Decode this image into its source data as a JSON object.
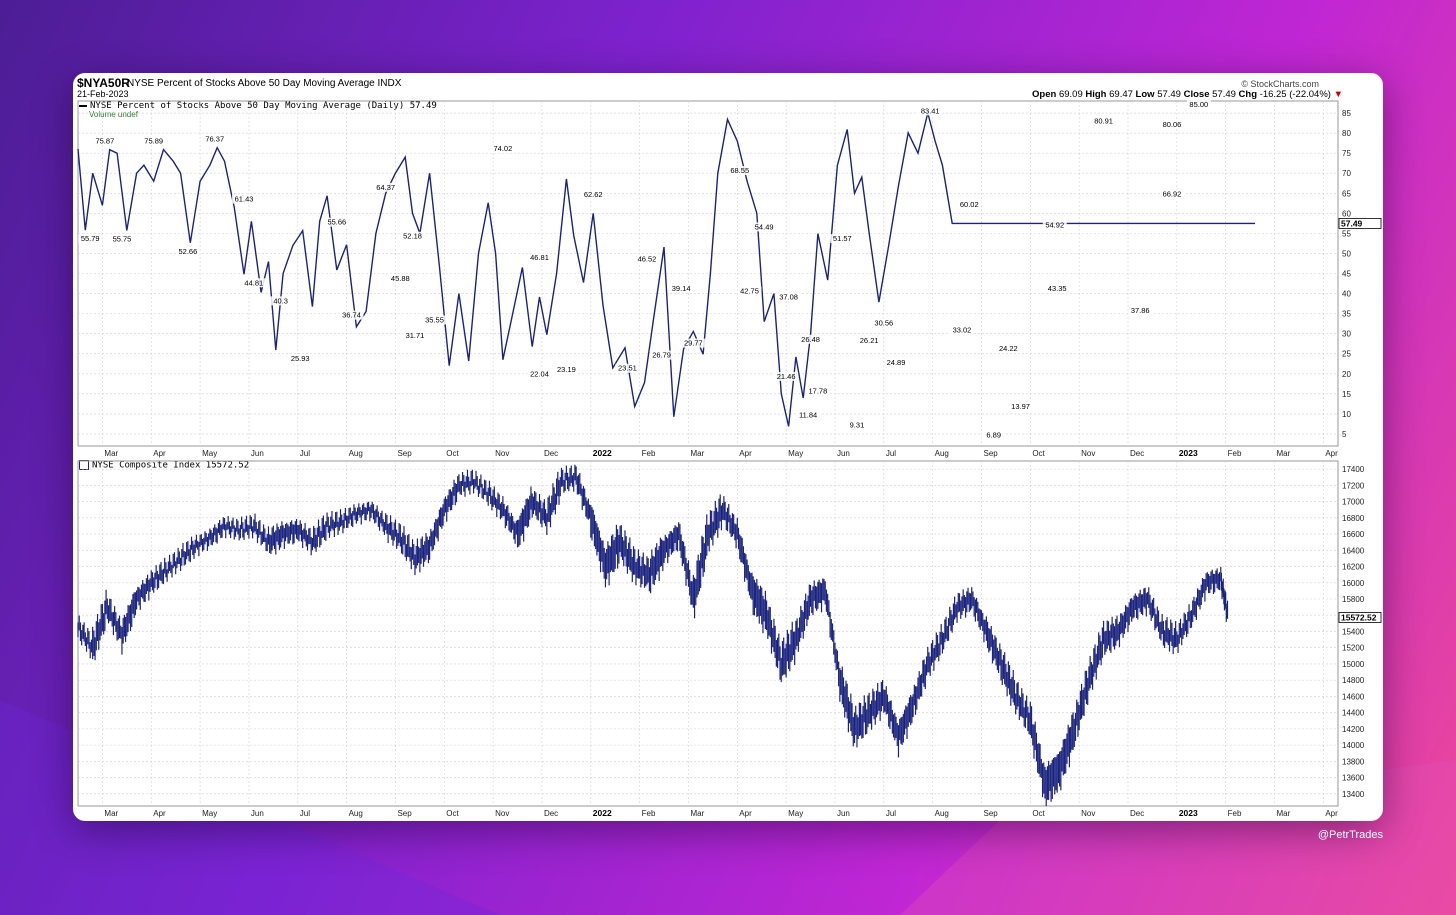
{
  "watermark": "@PetrTrades",
  "header": {
    "symbol": "$NYA50R",
    "name": "NYSE Percent of Stocks Above 50 Day Moving Average",
    "exchange": "INDX",
    "date": "21-Feb-2023",
    "brand": "© StockCharts.com",
    "open_label": "Open",
    "open": "69.09",
    "high_label": "High",
    "high": "69.47",
    "low_label": "Low",
    "low": "57.49",
    "close_label": "Close",
    "close": "57.49",
    "chg_label": "Chg",
    "chg": "-16.25 (-22.04%)",
    "chg_arrow": "▼"
  },
  "colors": {
    "line": "#1a237e",
    "grid": "#d0d0d0",
    "down": "#cc0000",
    "volume_label": "#2a7d2a"
  },
  "chart_data": [
    {
      "type": "line",
      "legend": "NYSE Percent of Stocks Above 50 Day Moving Average (Daily) 57.49",
      "sub_legend": "Volume undef",
      "last_value_label": "57.49",
      "ylim": [
        2,
        88
      ],
      "yticks": [
        5,
        10,
        15,
        20,
        25,
        30,
        35,
        40,
        45,
        50,
        55,
        60,
        65,
        70,
        75,
        80,
        85
      ],
      "x_tick_labels": [
        "Mar",
        "Apr",
        "May",
        "Jun",
        "Jul",
        "Aug",
        "Sep",
        "Oct",
        "Nov",
        "Dec",
        "2022",
        "Feb",
        "Mar",
        "Apr",
        "May",
        "Jun",
        "Jul",
        "Aug",
        "Sep",
        "Oct",
        "Nov",
        "Dec",
        "2023",
        "Feb",
        "Mar",
        "Apr"
      ],
      "x_tick_pos": [
        0.5,
        1.5,
        2.5,
        3.5,
        4.5,
        5.5,
        6.5,
        7.5,
        8.5,
        9.5,
        10.5,
        11.5,
        12.5,
        13.5,
        14.5,
        15.5,
        16.5,
        17.5,
        18.5,
        19.5,
        20.5,
        21.5,
        22.5,
        23.5,
        24.5,
        25.5
      ],
      "x": [
        0,
        0.15,
        0.3,
        0.5,
        0.65,
        0.8,
        1.0,
        1.2,
        1.35,
        1.55,
        1.75,
        1.95,
        2.1,
        2.3,
        2.5,
        2.7,
        2.85,
        3.0,
        3.2,
        3.4,
        3.55,
        3.75,
        3.9,
        4.05,
        4.2,
        4.4,
        4.6,
        4.8,
        4.95,
        5.1,
        5.3,
        5.5,
        5.7,
        5.9,
        6.1,
        6.3,
        6.5,
        6.7,
        6.85,
        7.0,
        7.2,
        7.4,
        7.6,
        7.8,
        8.0,
        8.2,
        8.4,
        8.55,
        8.7,
        8.9,
        9.1,
        9.3,
        9.45,
        9.6,
        9.8,
        10.0,
        10.15,
        10.35,
        10.55,
        10.75,
        10.95,
        11.2,
        11.4,
        11.6,
        11.8,
        12.0,
        12.2,
        12.4,
        12.6,
        12.8,
        12.95,
        13.1,
        13.3,
        13.5,
        13.7,
        13.9,
        14.05,
        14.25,
        14.4,
        14.55,
        14.7,
        14.85,
        15.0,
        15.15,
        15.35,
        15.55,
        15.75,
        15.9,
        16.05,
        16.2,
        16.4,
        16.6,
        16.8,
        17.0,
        17.2,
        17.4,
        17.55,
        17.7,
        17.9,
        18.1,
        18.25,
        18.45,
        18.6,
        18.8,
        18.95,
        19.1,
        19.25,
        19.4,
        19.6,
        19.8,
        20.0,
        20.2,
        20.4,
        20.6,
        20.8,
        21.0,
        21.15,
        21.35,
        21.55,
        21.75,
        21.9,
        22.1,
        22.25,
        22.45,
        22.65,
        22.85,
        23.05,
        23.25,
        23.45,
        23.65,
        23.85,
        24.0,
        24.1
      ],
      "y": [
        76,
        55.79,
        70,
        62,
        75.87,
        75,
        55.75,
        70,
        72,
        68,
        75.89,
        73,
        70,
        52.66,
        68,
        72,
        76.37,
        73,
        61.43,
        44.81,
        58,
        40.3,
        48,
        25.93,
        45,
        52,
        55.66,
        36.74,
        58,
        64.37,
        45.88,
        52.18,
        31.71,
        35.55,
        55,
        65,
        70,
        74.02,
        60,
        55,
        70,
        46.81,
        22.04,
        40,
        23.19,
        50,
        62.62,
        50,
        23.51,
        35,
        46.52,
        26.79,
        39.14,
        29.77,
        45,
        68.55,
        54.49,
        42.75,
        60,
        37.08,
        21.46,
        26.48,
        11.84,
        17.78,
        35,
        51.57,
        9.31,
        26.21,
        30.56,
        24.89,
        45,
        70,
        83.41,
        78,
        68,
        60.02,
        33.02,
        40,
        15,
        6.89,
        24.22,
        13.97,
        30,
        54.92,
        43.35,
        72,
        80.91,
        65,
        69,
        55,
        37.86,
        52,
        66.92,
        80.06,
        75,
        85,
        78,
        72,
        57.49,
        57.49,
        57.49,
        57.49,
        57.49,
        57.49,
        57.49,
        57.49,
        57.49,
        57.49,
        57.49,
        57.49,
        57.49,
        57.49,
        57.49,
        57.49,
        57.49,
        57.49,
        57.49,
        57.49,
        57.49,
        57.49,
        57.49,
        57.49,
        57.49,
        57.49,
        57.49,
        57.49,
        57.49,
        57.49,
        57.49,
        57.49,
        57.49,
        57.49,
        57.49
      ],
      "peak_labels": [
        {
          "x": 0.25,
          "y": 55.79,
          "t": "55.79",
          "pos": "below"
        },
        {
          "x": 0.55,
          "y": 75.87,
          "t": "75.87",
          "pos": "above"
        },
        {
          "x": 0.9,
          "y": 55.75,
          "t": "55.75",
          "pos": "below"
        },
        {
          "x": 1.55,
          "y": 75.89,
          "t": "75.89",
          "pos": "above"
        },
        {
          "x": 2.25,
          "y": 52.66,
          "t": "52.66",
          "pos": "below"
        },
        {
          "x": 2.8,
          "y": 76.37,
          "t": "76.37",
          "pos": "above"
        },
        {
          "x": 3.4,
          "y": 61.43,
          "t": "61.43",
          "pos": "above"
        },
        {
          "x": 3.6,
          "y": 44.81,
          "t": "44.81",
          "pos": "below"
        },
        {
          "x": 4.15,
          "y": 40.3,
          "t": "40.3",
          "pos": "below"
        },
        {
          "x": 4.55,
          "y": 25.93,
          "t": "25.93",
          "pos": "below"
        },
        {
          "x": 5.3,
          "y": 55.66,
          "t": "55.66",
          "pos": "above"
        },
        {
          "x": 5.6,
          "y": 36.74,
          "t": "36.74",
          "pos": "below"
        },
        {
          "x": 6.3,
          "y": 64.37,
          "t": "64.37",
          "pos": "above"
        },
        {
          "x": 6.6,
          "y": 45.88,
          "t": "45.88",
          "pos": "below"
        },
        {
          "x": 6.85,
          "y": 52.18,
          "t": "52.18",
          "pos": "above"
        },
        {
          "x": 6.9,
          "y": 31.71,
          "t": "31.71",
          "pos": "below"
        },
        {
          "x": 7.3,
          "y": 35.55,
          "t": "35.55",
          "pos": "below"
        },
        {
          "x": 8.7,
          "y": 74.02,
          "t": "74.02",
          "pos": "above"
        },
        {
          "x": 9.45,
          "y": 46.81,
          "t": "46.81",
          "pos": "above"
        },
        {
          "x": 9.45,
          "y": 22.04,
          "t": "22.04",
          "pos": "below"
        },
        {
          "x": 10.0,
          "y": 23.19,
          "t": "23.19",
          "pos": "below"
        },
        {
          "x": 10.55,
          "y": 62.62,
          "t": "62.62",
          "pos": "above"
        },
        {
          "x": 11.25,
          "y": 23.51,
          "t": "23.51",
          "pos": "below"
        },
        {
          "x": 11.65,
          "y": 46.52,
          "t": "46.52",
          "pos": "above"
        },
        {
          "x": 11.95,
          "y": 26.79,
          "t": "26.79",
          "pos": "below"
        },
        {
          "x": 12.35,
          "y": 39.14,
          "t": "39.14",
          "pos": "above"
        },
        {
          "x": 12.6,
          "y": 29.77,
          "t": "29.77",
          "pos": "below"
        },
        {
          "x": 13.55,
          "y": 68.55,
          "t": "68.55",
          "pos": "above"
        },
        {
          "x": 14.05,
          "y": 54.49,
          "t": "54.49",
          "pos": "above"
        },
        {
          "x": 13.75,
          "y": 42.75,
          "t": "42.75",
          "pos": "below"
        },
        {
          "x": 14.55,
          "y": 37.08,
          "t": "37.08",
          "pos": "above"
        },
        {
          "x": 14.5,
          "y": 21.46,
          "t": "21.46",
          "pos": "below"
        },
        {
          "x": 15.0,
          "y": 26.48,
          "t": "26.48",
          "pos": "above"
        },
        {
          "x": 14.95,
          "y": 11.84,
          "t": "11.84",
          "pos": "below"
        },
        {
          "x": 15.15,
          "y": 17.78,
          "t": "17.78",
          "pos": "below"
        },
        {
          "x": 15.65,
          "y": 51.57,
          "t": "51.57",
          "pos": "above"
        },
        {
          "x": 15.95,
          "y": 9.31,
          "t": "9.31",
          "pos": "below"
        },
        {
          "x": 16.2,
          "y": 26.21,
          "t": "26.21",
          "pos": "above"
        },
        {
          "x": 16.5,
          "y": 30.56,
          "t": "30.56",
          "pos": "above"
        },
        {
          "x": 16.75,
          "y": 24.89,
          "t": "24.89",
          "pos": "below"
        },
        {
          "x": 17.45,
          "y": 83.41,
          "t": "83.41",
          "pos": "above"
        },
        {
          "x": 18.25,
          "y": 60.02,
          "t": "60.02",
          "pos": "above"
        },
        {
          "x": 18.1,
          "y": 33.02,
          "t": "33.02",
          "pos": "below"
        },
        {
          "x": 18.75,
          "y": 6.89,
          "t": "6.89",
          "pos": "below"
        },
        {
          "x": 19.05,
          "y": 24.22,
          "t": "24.22",
          "pos": "above"
        },
        {
          "x": 19.3,
          "y": 13.97,
          "t": "13.97",
          "pos": "below"
        },
        {
          "x": 20.0,
          "y": 54.92,
          "t": "54.92",
          "pos": "above"
        },
        {
          "x": 20.05,
          "y": 43.35,
          "t": "43.35",
          "pos": "below"
        },
        {
          "x": 21.0,
          "y": 80.91,
          "t": "80.91",
          "pos": "above"
        },
        {
          "x": 21.75,
          "y": 37.86,
          "t": "37.86",
          "pos": "below"
        },
        {
          "x": 22.4,
          "y": 66.92,
          "t": "66.92",
          "pos": "below"
        },
        {
          "x": 22.4,
          "y": 80.06,
          "t": "80.06",
          "pos": "above"
        },
        {
          "x": 22.95,
          "y": 85.0,
          "t": "85.00",
          "pos": "above"
        }
      ]
    },
    {
      "type": "ohlc",
      "legend": "NYSE Composite Index 15572.52",
      "last_value_label": "15572.52",
      "ylim": [
        13250,
        17500
      ],
      "yticks": [
        13400,
        13600,
        13800,
        14000,
        14200,
        14400,
        14600,
        14800,
        15000,
        15200,
        15400,
        15600,
        15800,
        16000,
        16200,
        16400,
        16600,
        16800,
        17000,
        17200,
        17400
      ],
      "x_tick_labels": [
        "Mar",
        "Apr",
        "May",
        "Jun",
        "Jul",
        "Aug",
        "Sep",
        "Oct",
        "Nov",
        "Dec",
        "2022",
        "Feb",
        "Mar",
        "Apr",
        "May",
        "Jun",
        "Jul",
        "Aug",
        "Sep",
        "Oct",
        "Nov",
        "Dec",
        "2023",
        "Feb",
        "Mar",
        "Apr"
      ],
      "x": [
        0,
        0.3,
        0.6,
        0.9,
        1.2,
        1.5,
        1.8,
        2.1,
        2.4,
        2.7,
        3.0,
        3.3,
        3.6,
        3.9,
        4.2,
        4.5,
        4.8,
        5.1,
        5.4,
        5.7,
        6.0,
        6.3,
        6.6,
        6.9,
        7.2,
        7.5,
        7.8,
        8.1,
        8.4,
        8.7,
        9.0,
        9.3,
        9.6,
        9.9,
        10.2,
        10.5,
        10.8,
        11.1,
        11.4,
        11.7,
        12.0,
        12.3,
        12.6,
        12.9,
        13.2,
        13.5,
        13.8,
        14.1,
        14.4,
        14.7,
        15.0,
        15.3,
        15.6,
        15.9,
        16.2,
        16.5,
        16.8,
        17.1,
        17.4,
        17.7,
        18.0,
        18.3,
        18.6,
        18.9,
        19.2,
        19.5,
        19.8,
        20.1,
        20.4,
        20.7,
        21.0,
        21.3,
        21.6,
        21.9,
        22.2,
        22.5,
        22.8,
        23.1,
        23.4,
        23.55
      ],
      "close": [
        15450,
        15200,
        15700,
        15350,
        15800,
        16000,
        16150,
        16300,
        16450,
        16550,
        16700,
        16650,
        16700,
        16500,
        16600,
        16650,
        16500,
        16700,
        16750,
        16850,
        16900,
        16700,
        16550,
        16300,
        16450,
        16900,
        17200,
        17250,
        17100,
        16900,
        16600,
        17000,
        16800,
        17250,
        17300,
        16800,
        16200,
        16500,
        16200,
        16100,
        16400,
        16600,
        15800,
        16600,
        16900,
        16600,
        15900,
        15600,
        15000,
        15300,
        15800,
        15900,
        14800,
        14200,
        14400,
        14600,
        14100,
        14500,
        15000,
        15300,
        15700,
        15800,
        15400,
        15000,
        14600,
        14300,
        13500,
        13700,
        14200,
        14800,
        15300,
        15400,
        15700,
        15800,
        15400,
        15300,
        15600,
        16000,
        16050,
        15572.52
      ],
      "range": [
        120,
        200,
        150,
        180,
        130,
        120,
        100,
        110,
        90,
        100,
        90,
        100,
        110,
        150,
        130,
        120,
        140,
        110,
        100,
        90,
        100,
        130,
        150,
        170,
        150,
        140,
        110,
        100,
        120,
        130,
        200,
        150,
        180,
        120,
        140,
        220,
        250,
        200,
        180,
        220,
        160,
        180,
        260,
        200,
        150,
        180,
        250,
        220,
        240,
        200,
        180,
        160,
        240,
        220,
        200,
        180,
        200,
        180,
        160,
        150,
        140,
        140,
        180,
        200,
        180,
        220,
        260,
        250,
        220,
        200,
        180,
        160,
        150,
        140,
        160,
        140,
        140,
        130,
        120,
        180
      ]
    }
  ]
}
